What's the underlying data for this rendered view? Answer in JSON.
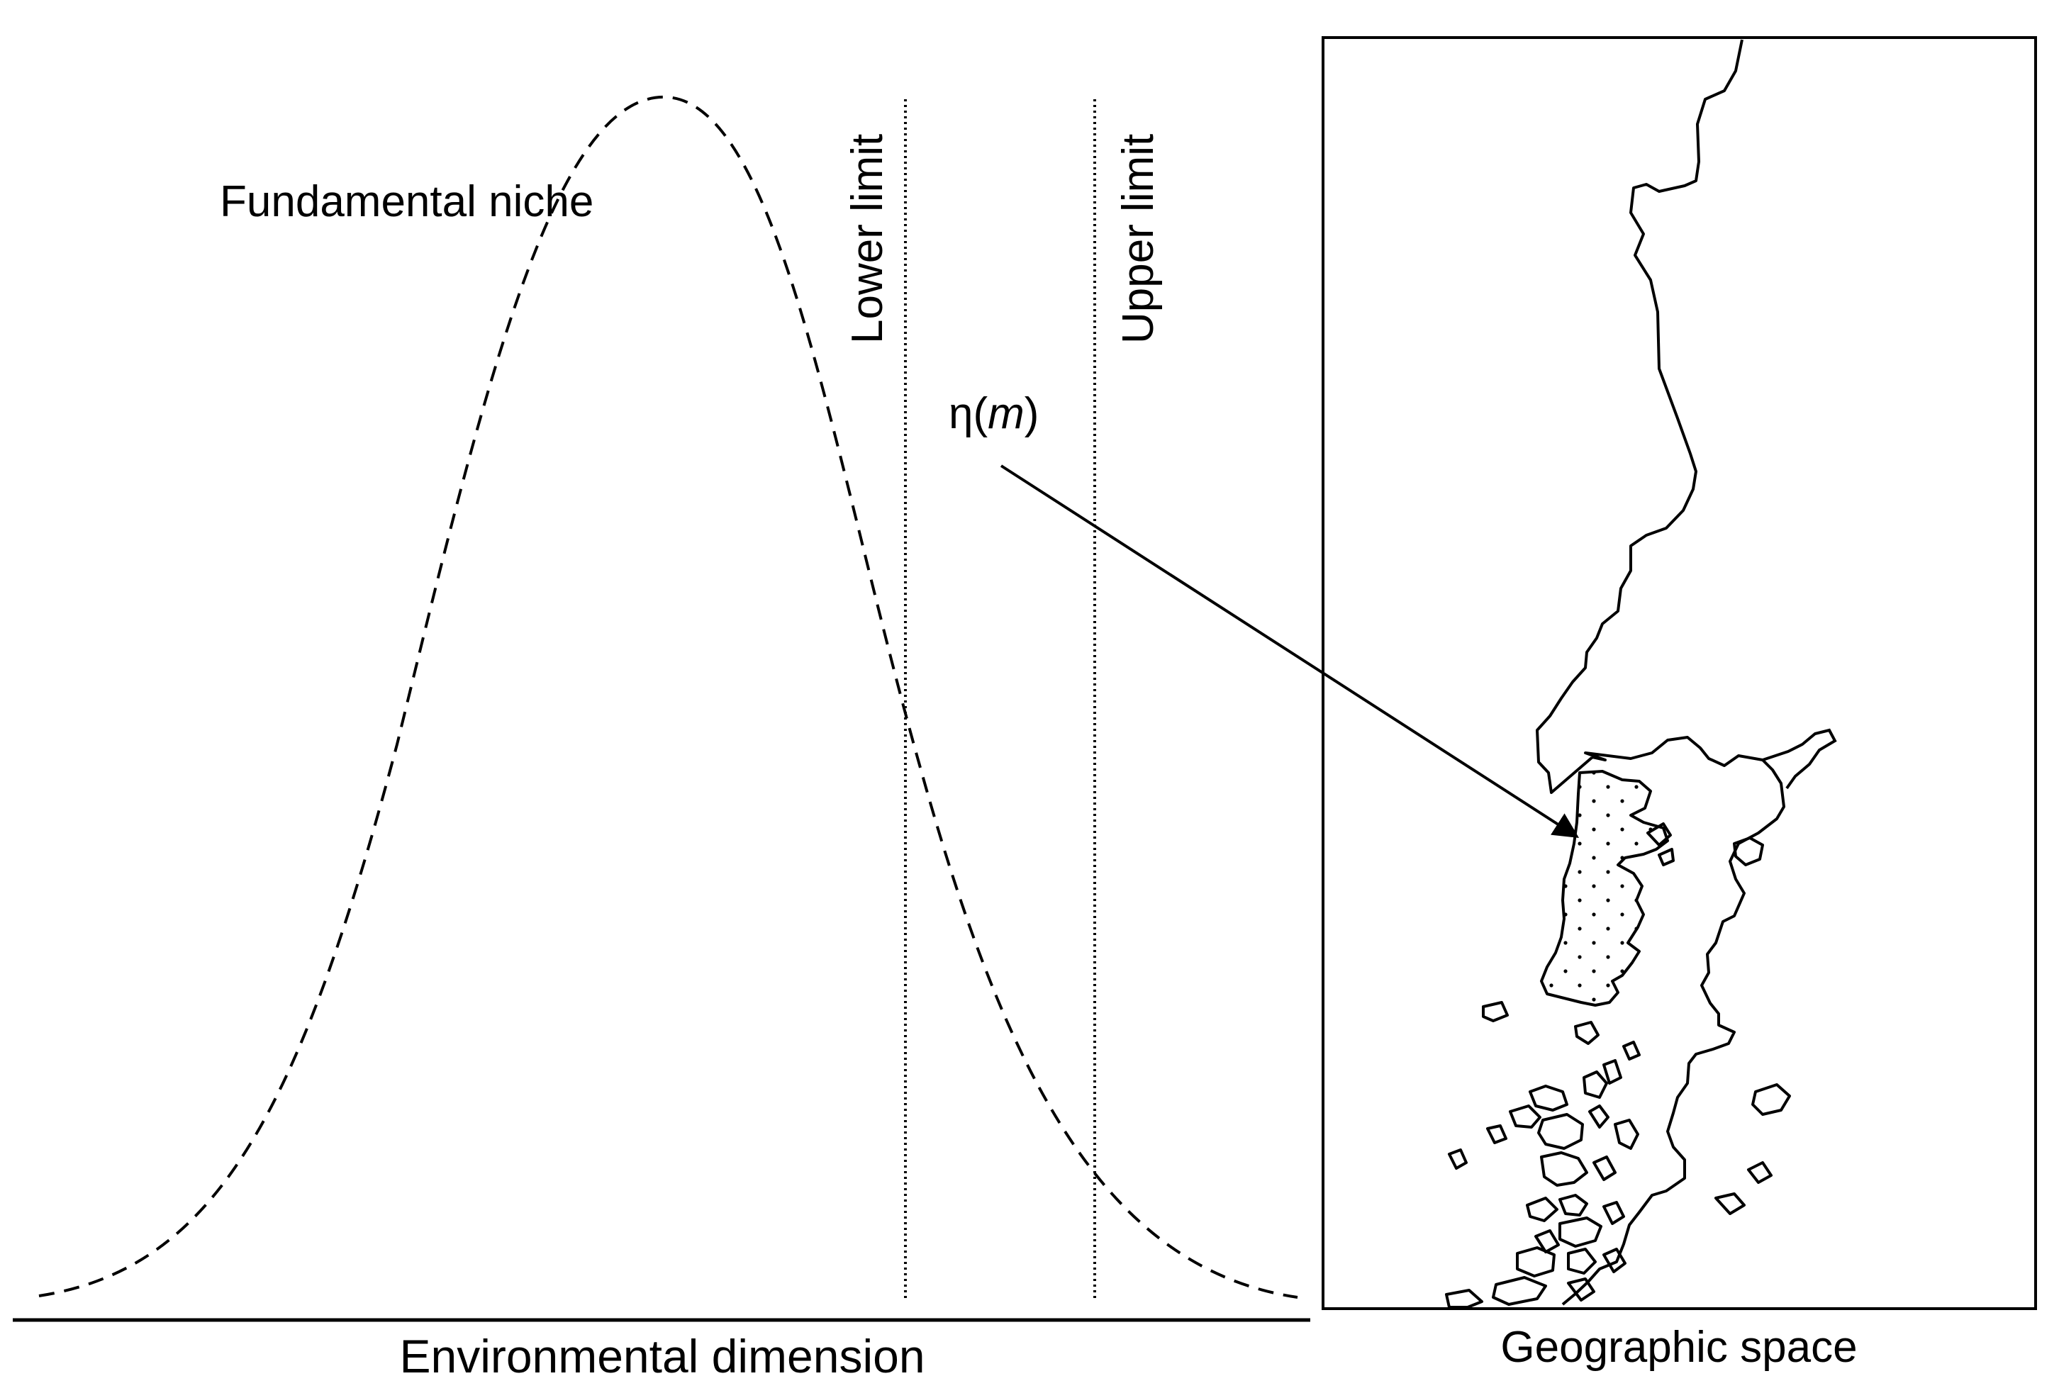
{
  "labels": {
    "curve": "Fundamental niche",
    "lower": "Lower limit",
    "upper": "Upper limit",
    "mapping_symbol": "η(",
    "mapping_arg": "m",
    "mapping_close": ")",
    "x_axis": "Environmental dimension",
    "map_caption": "Geographic space"
  },
  "colors": {
    "ink": "#000000",
    "background": "#ffffff"
  }
}
